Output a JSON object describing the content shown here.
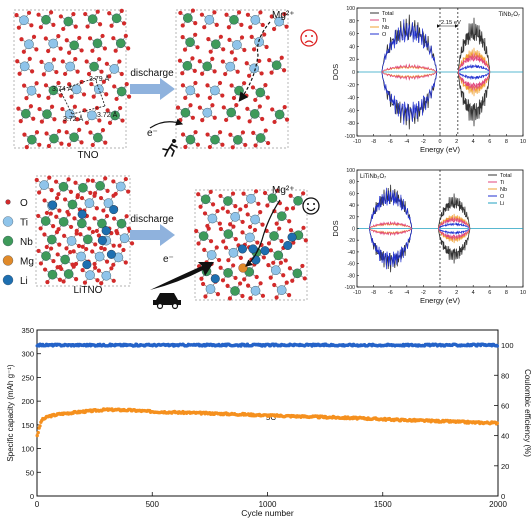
{
  "schematic": {
    "tno_label": "TNO",
    "litno_label": "LiTNO",
    "discharge_label": "discharge",
    "electron_label": "e⁻",
    "mg_ion_label": "Mg²⁺",
    "bond_lengths": [
      "3.74 Å",
      "3.79 Å",
      "3.72 Å",
      "3.72 Å"
    ],
    "sad_face_icon": "sad-face-icon",
    "happy_face_icon": "happy-face-icon",
    "runner_icon": "runner-icon",
    "car_icon": "car-icon",
    "legend": [
      {
        "label": "O",
        "color": "#d22a2a"
      },
      {
        "label": "Ti",
        "color": "#8fc4ea"
      },
      {
        "label": "Nb",
        "color": "#3e9a5a"
      },
      {
        "label": "Mg",
        "color": "#e08a2a"
      },
      {
        "label": "Li",
        "color": "#1e6fb0"
      }
    ]
  },
  "colors": {
    "arrow": "#8fb2dd",
    "capacity": "#f5901e",
    "efficiency": "#2563c8",
    "dos_total": "#333333",
    "dos_ti": "#e0457b",
    "dos_nb": "#f0a030",
    "dos_o": "#2030d0",
    "dos_li": "#20a0c0"
  },
  "chart_data": [
    {
      "type": "line",
      "id": "dos_tno",
      "title": "TiNb₂O₇",
      "xlabel": "Energy (eV)",
      "ylabel": "DOS",
      "xlim": [
        -10,
        10
      ],
      "ylim": [
        -100,
        100
      ],
      "xticks": [
        "-10",
        "-8",
        "-6",
        "-4",
        "-2",
        "0",
        "2",
        "4",
        "6",
        "8",
        "10"
      ],
      "yticks": [
        "100",
        "80",
        "60",
        "40",
        "20",
        "0",
        "-20",
        "-40",
        "-60",
        "-80",
        "-100"
      ],
      "series": [
        {
          "name": "Total"
        },
        {
          "name": "Ti"
        },
        {
          "name": "Nb"
        },
        {
          "name": "O"
        }
      ],
      "annotation": "2.15 eV",
      "fermi_level": 0,
      "gap": [
        0,
        2.15
      ],
      "bands": [
        {
          "x": [
            -7,
            -0.4
          ],
          "total": 90,
          "ti": 12,
          "nb": 10,
          "o": 85
        },
        {
          "x": [
            2.2,
            6.0
          ],
          "total": 85,
          "ti": 30,
          "nb": 38,
          "o": 12
        }
      ]
    },
    {
      "type": "line",
      "id": "dos_litno",
      "title": "LiTiNb₂O₇",
      "xlabel": "Energy (eV)",
      "ylabel": "DOS",
      "xlim": [
        -10,
        10
      ],
      "ylim": [
        -100,
        100
      ],
      "xticks": [
        "-10",
        "-8",
        "-6",
        "-4",
        "-2",
        "0",
        "2",
        "4",
        "6",
        "8",
        "10"
      ],
      "yticks": [
        "100",
        "80",
        "60",
        "40",
        "20",
        "0",
        "-20",
        "-40",
        "-60",
        "-80",
        "-100"
      ],
      "series": [
        {
          "name": "Total"
        },
        {
          "name": "Ti"
        },
        {
          "name": "Nb"
        },
        {
          "name": "O"
        },
        {
          "name": "Li"
        }
      ],
      "fermi_level": 0,
      "bands": [
        {
          "x": [
            -8.5,
            -3.4
          ],
          "total": 75,
          "ti": 12,
          "nb": 10,
          "o": 72
        },
        {
          "x": [
            -0.2,
            3.6
          ],
          "total": 60,
          "ti": 20,
          "nb": 25,
          "o": 10
        }
      ]
    },
    {
      "type": "scatter",
      "id": "cycling",
      "annotation": "5C",
      "xlabel": "Cycle number",
      "ylabel": "Specific capacity (mAh g⁻¹)",
      "y2label": "Coulombic efficiency (%)",
      "xlim": [
        0,
        2000
      ],
      "ylim": [
        0,
        350
      ],
      "y2lim": [
        0,
        110
      ],
      "xticks": [
        "0",
        "500",
        "1000",
        "1500",
        "2000"
      ],
      "yticks": [
        "0",
        "50",
        "100",
        "150",
        "200",
        "250",
        "300",
        "350"
      ],
      "y2ticks": [
        "0",
        "20",
        "40",
        "60",
        "80",
        "100"
      ],
      "series": [
        {
          "role": "capacity",
          "x": [
            1,
            20,
            50,
            100,
            200,
            300,
            400,
            500,
            700,
            900,
            1000,
            1200,
            1400,
            1500,
            1600,
            1800,
            1900,
            2000
          ],
          "y": [
            128,
            160,
            168,
            173,
            178,
            182,
            181,
            178,
            175,
            172,
            170,
            167,
            164,
            162,
            160,
            157,
            155,
            154
          ]
        },
        {
          "role": "coulombic_efficiency",
          "x": [
            0,
            2000
          ],
          "y": [
            100,
            100
          ]
        }
      ]
    }
  ]
}
